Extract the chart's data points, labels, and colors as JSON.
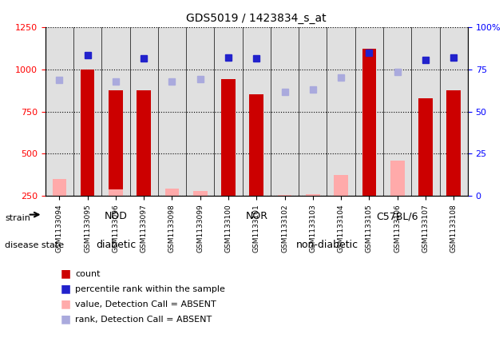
{
  "title": "GDS5019 / 1423834_s_at",
  "samples": [
    "GSM1133094",
    "GSM1133095",
    "GSM1133096",
    "GSM1133097",
    "GSM1133098",
    "GSM1133099",
    "GSM1133100",
    "GSM1133101",
    "GSM1133102",
    "GSM1133103",
    "GSM1133104",
    "GSM1133105",
    "GSM1133106",
    "GSM1133107",
    "GSM1133108"
  ],
  "count_values": [
    null,
    1000,
    875,
    875,
    null,
    null,
    940,
    850,
    null,
    null,
    null,
    1120,
    null,
    830,
    875
  ],
  "count_absent": [
    350,
    null,
    290,
    null,
    295,
    280,
    null,
    null,
    255,
    262,
    375,
    null,
    460,
    null,
    null
  ],
  "percentile_values": [
    null,
    1085,
    null,
    1065,
    null,
    null,
    1070,
    1065,
    null,
    null,
    null,
    1100,
    null,
    1055,
    1070
  ],
  "percentile_absent": [
    935,
    null,
    930,
    null,
    930,
    940,
    null,
    null,
    865,
    880,
    950,
    null,
    985,
    null,
    null
  ],
  "ylim_left": [
    250,
    1250
  ],
  "ylim_right": [
    0,
    100
  ],
  "yticks_left": [
    250,
    500,
    750,
    1000,
    1250
  ],
  "yticks_right": [
    0,
    25,
    50,
    75,
    100
  ],
  "groups": {
    "NOD": {
      "indices": [
        0,
        1,
        2,
        3,
        4
      ],
      "color": "#90ee90"
    },
    "NOR": {
      "indices": [
        5,
        6,
        7,
        8,
        9
      ],
      "color": "#3cb371"
    },
    "C57BL/6": {
      "indices": [
        10,
        11,
        12,
        13,
        14
      ],
      "color": "#2e8b3f"
    }
  },
  "disease": {
    "diabetic": {
      "indices": [
        0,
        1,
        2,
        3,
        4
      ],
      "color": "#ff66ff"
    },
    "non-diabetic": {
      "indices": [
        5,
        6,
        7,
        8,
        9,
        10,
        11,
        12,
        13,
        14
      ],
      "color": "#cc44cc"
    }
  },
  "bar_color_red": "#cc0000",
  "bar_color_pink": "#ffaaaa",
  "dot_color_blue": "#2222cc",
  "dot_color_lightblue": "#aaaadd",
  "grid_color": "#000000",
  "background_color": "#ffffff",
  "plot_bg_color": "#e0e0e0",
  "legend_items": [
    {
      "label": "count",
      "color": "#cc0000",
      "marker": "s"
    },
    {
      "label": "percentile rank within the sample",
      "color": "#2222cc",
      "marker": "s"
    },
    {
      "label": "value, Detection Call = ABSENT",
      "color": "#ffaaaa",
      "marker": "s"
    },
    {
      "label": "rank, Detection Call = ABSENT",
      "color": "#aaaadd",
      "marker": "s"
    }
  ]
}
